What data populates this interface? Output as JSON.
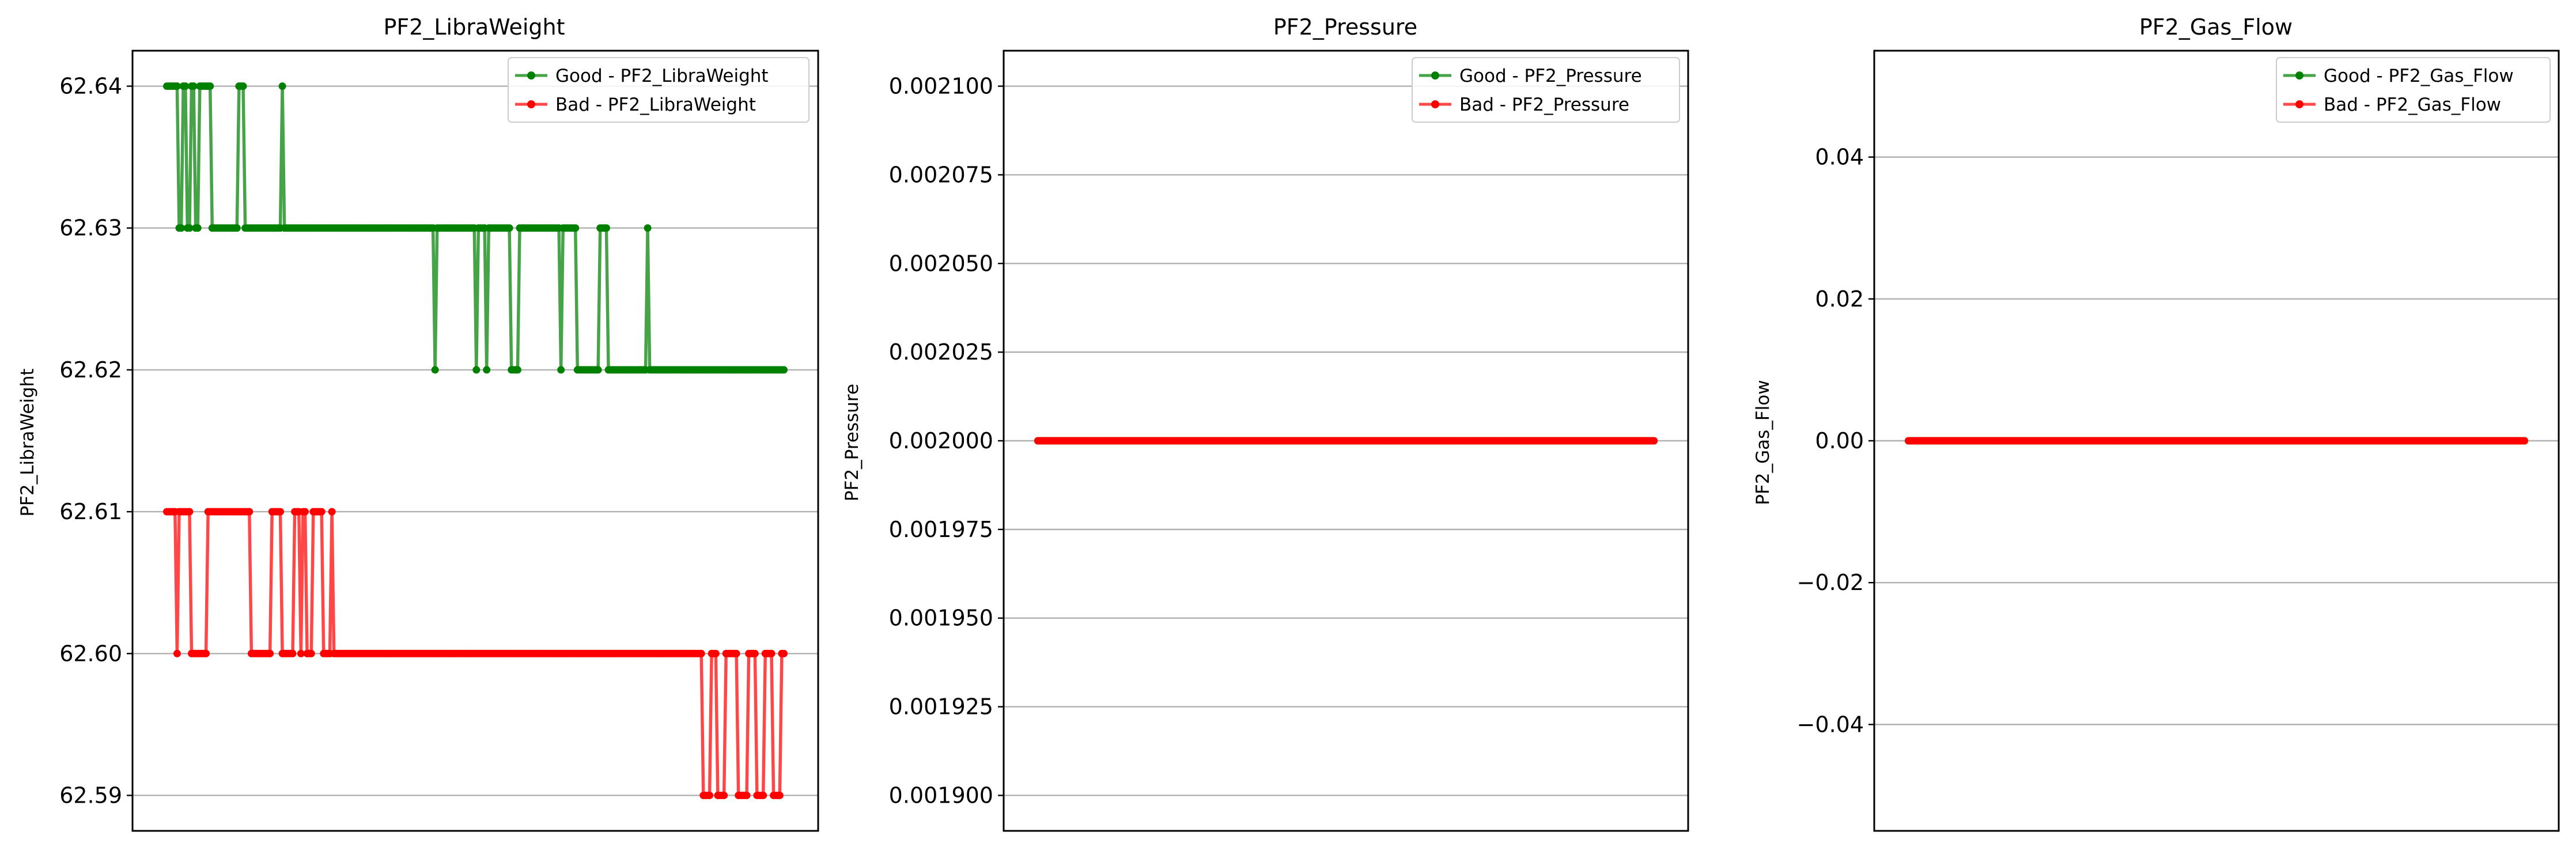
{
  "chart_data": [
    {
      "type": "line",
      "title": "PF2_LibraWeight",
      "xlabel": "",
      "ylabel": "PF2_LibraWeight",
      "ylim": [
        62.5875,
        62.6425
      ],
      "yticks": [
        "62.59",
        "62.60",
        "62.61",
        "62.62",
        "62.63",
        "62.64"
      ],
      "ytick_values": [
        62.59,
        62.6,
        62.61,
        62.62,
        62.63,
        62.64
      ],
      "xticks_visible": false,
      "grid": "y",
      "legend": "upper right",
      "series": [
        {
          "name": "Good - PF2_LibraWeight",
          "color": "#008000",
          "x_range": [
            0,
            299
          ],
          "segments": [
            {
              "x": [
                0,
                5
              ],
              "y": 62.64
            },
            {
              "x": [
                6,
                7
              ],
              "y": 62.63
            },
            {
              "x": [
                8,
                9
              ],
              "y": 62.64
            },
            {
              "x": [
                10,
                11
              ],
              "y": 62.63
            },
            {
              "x": [
                12,
                13
              ],
              "y": 62.64
            },
            {
              "x": [
                14,
                15
              ],
              "y": 62.63
            },
            {
              "x": [
                16,
                21
              ],
              "y": 62.64
            },
            {
              "x": [
                22,
                34
              ],
              "y": 62.63
            },
            {
              "x": [
                35,
                37
              ],
              "y": 62.64
            },
            {
              "x": [
                38,
                55
              ],
              "y": 62.63
            },
            {
              "x": [
                56,
                56
              ],
              "y": 62.64
            },
            {
              "x": [
                57,
                129
              ],
              "y": 62.63
            },
            {
              "x": [
                130,
                130
              ],
              "y": 62.62
            },
            {
              "x": [
                131,
                149
              ],
              "y": 62.63
            },
            {
              "x": [
                150,
                150
              ],
              "y": 62.62
            },
            {
              "x": [
                151,
                154
              ],
              "y": 62.63
            },
            {
              "x": [
                155,
                155
              ],
              "y": 62.62
            },
            {
              "x": [
                156,
                166
              ],
              "y": 62.63
            },
            {
              "x": [
                167,
                170
              ],
              "y": 62.62
            },
            {
              "x": [
                171,
                190
              ],
              "y": 62.63
            },
            {
              "x": [
                191,
                191
              ],
              "y": 62.62
            },
            {
              "x": [
                192,
                198
              ],
              "y": 62.63
            },
            {
              "x": [
                199,
                209
              ],
              "y": 62.62
            },
            {
              "x": [
                210,
                213
              ],
              "y": 62.63
            },
            {
              "x": [
                214,
                232
              ],
              "y": 62.62
            },
            {
              "x": [
                233,
                233
              ],
              "y": 62.63
            },
            {
              "x": [
                234,
                299
              ],
              "y": 62.62
            }
          ]
        },
        {
          "name": "Bad - PF2_LibraWeight",
          "color": "#ff0000",
          "x_range": [
            0,
            299
          ],
          "segments": [
            {
              "x": [
                0,
                4
              ],
              "y": 62.61
            },
            {
              "x": [
                5,
                5
              ],
              "y": 62.6
            },
            {
              "x": [
                6,
                11
              ],
              "y": 62.61
            },
            {
              "x": [
                12,
                19
              ],
              "y": 62.6
            },
            {
              "x": [
                20,
                40
              ],
              "y": 62.61
            },
            {
              "x": [
                41,
                50
              ],
              "y": 62.6
            },
            {
              "x": [
                51,
                55
              ],
              "y": 62.61
            },
            {
              "x": [
                56,
                61
              ],
              "y": 62.6
            },
            {
              "x": [
                62,
                64
              ],
              "y": 62.61
            },
            {
              "x": [
                65,
                65
              ],
              "y": 62.6
            },
            {
              "x": [
                66,
                67
              ],
              "y": 62.61
            },
            {
              "x": [
                68,
                70
              ],
              "y": 62.6
            },
            {
              "x": [
                71,
                75
              ],
              "y": 62.61
            },
            {
              "x": [
                76,
                79
              ],
              "y": 62.6
            },
            {
              "x": [
                80,
                80
              ],
              "y": 62.61
            },
            {
              "x": [
                81,
                259
              ],
              "y": 62.6
            },
            {
              "x": [
                260,
                263
              ],
              "y": 62.59
            },
            {
              "x": [
                264,
                266
              ],
              "y": 62.6
            },
            {
              "x": [
                267,
                270
              ],
              "y": 62.59
            },
            {
              "x": [
                271,
                276
              ],
              "y": 62.6
            },
            {
              "x": [
                277,
                281
              ],
              "y": 62.59
            },
            {
              "x": [
                282,
                285
              ],
              "y": 62.6
            },
            {
              "x": [
                286,
                289
              ],
              "y": 62.59
            },
            {
              "x": [
                290,
                293
              ],
              "y": 62.6
            },
            {
              "x": [
                294,
                297
              ],
              "y": 62.59
            },
            {
              "x": [
                298,
                299
              ],
              "y": 62.6
            }
          ]
        }
      ]
    },
    {
      "type": "line",
      "title": "PF2_Pressure",
      "xlabel": "",
      "ylabel": "PF2_Pressure",
      "ylim": [
        0.00189,
        0.00211
      ],
      "yticks": [
        "0.001900",
        "0.001925",
        "0.001950",
        "0.001975",
        "0.002000",
        "0.002025",
        "0.002050",
        "0.002075",
        "0.002100"
      ],
      "ytick_values": [
        0.0019,
        0.001925,
        0.00195,
        0.001975,
        0.002,
        0.002025,
        0.00205,
        0.002075,
        0.0021
      ],
      "xticks_visible": false,
      "grid": "y",
      "legend": "upper right",
      "series": [
        {
          "name": "Good - PF2_Pressure",
          "color": "#008000",
          "x_range": [
            0,
            299
          ],
          "segments": [
            {
              "x": [
                0,
                299
              ],
              "y": 0.002
            }
          ]
        },
        {
          "name": "Bad - PF2_Pressure",
          "color": "#ff0000",
          "x_range": [
            0,
            299
          ],
          "segments": [
            {
              "x": [
                0,
                299
              ],
              "y": 0.002
            }
          ]
        }
      ]
    },
    {
      "type": "line",
      "title": "PF2_Gas_Flow",
      "xlabel": "",
      "ylabel": "PF2_Gas_Flow",
      "ylim": [
        -0.055,
        0.055
      ],
      "yticks": [
        "−0.04",
        "−0.02",
        "0.00",
        "0.02",
        "0.04"
      ],
      "ytick_values": [
        -0.04,
        -0.02,
        0.0,
        0.02,
        0.04
      ],
      "xticks_visible": false,
      "grid": "y",
      "legend": "upper right",
      "series": [
        {
          "name": "Good - PF2_Gas_Flow",
          "color": "#008000",
          "x_range": [
            0,
            299
          ],
          "segments": [
            {
              "x": [
                0,
                299
              ],
              "y": 0.0
            }
          ]
        },
        {
          "name": "Bad - PF2_Gas_Flow",
          "color": "#ff0000",
          "x_range": [
            0,
            299
          ],
          "segments": [
            {
              "x": [
                0,
                299
              ],
              "y": 0.0
            }
          ]
        }
      ]
    }
  ]
}
